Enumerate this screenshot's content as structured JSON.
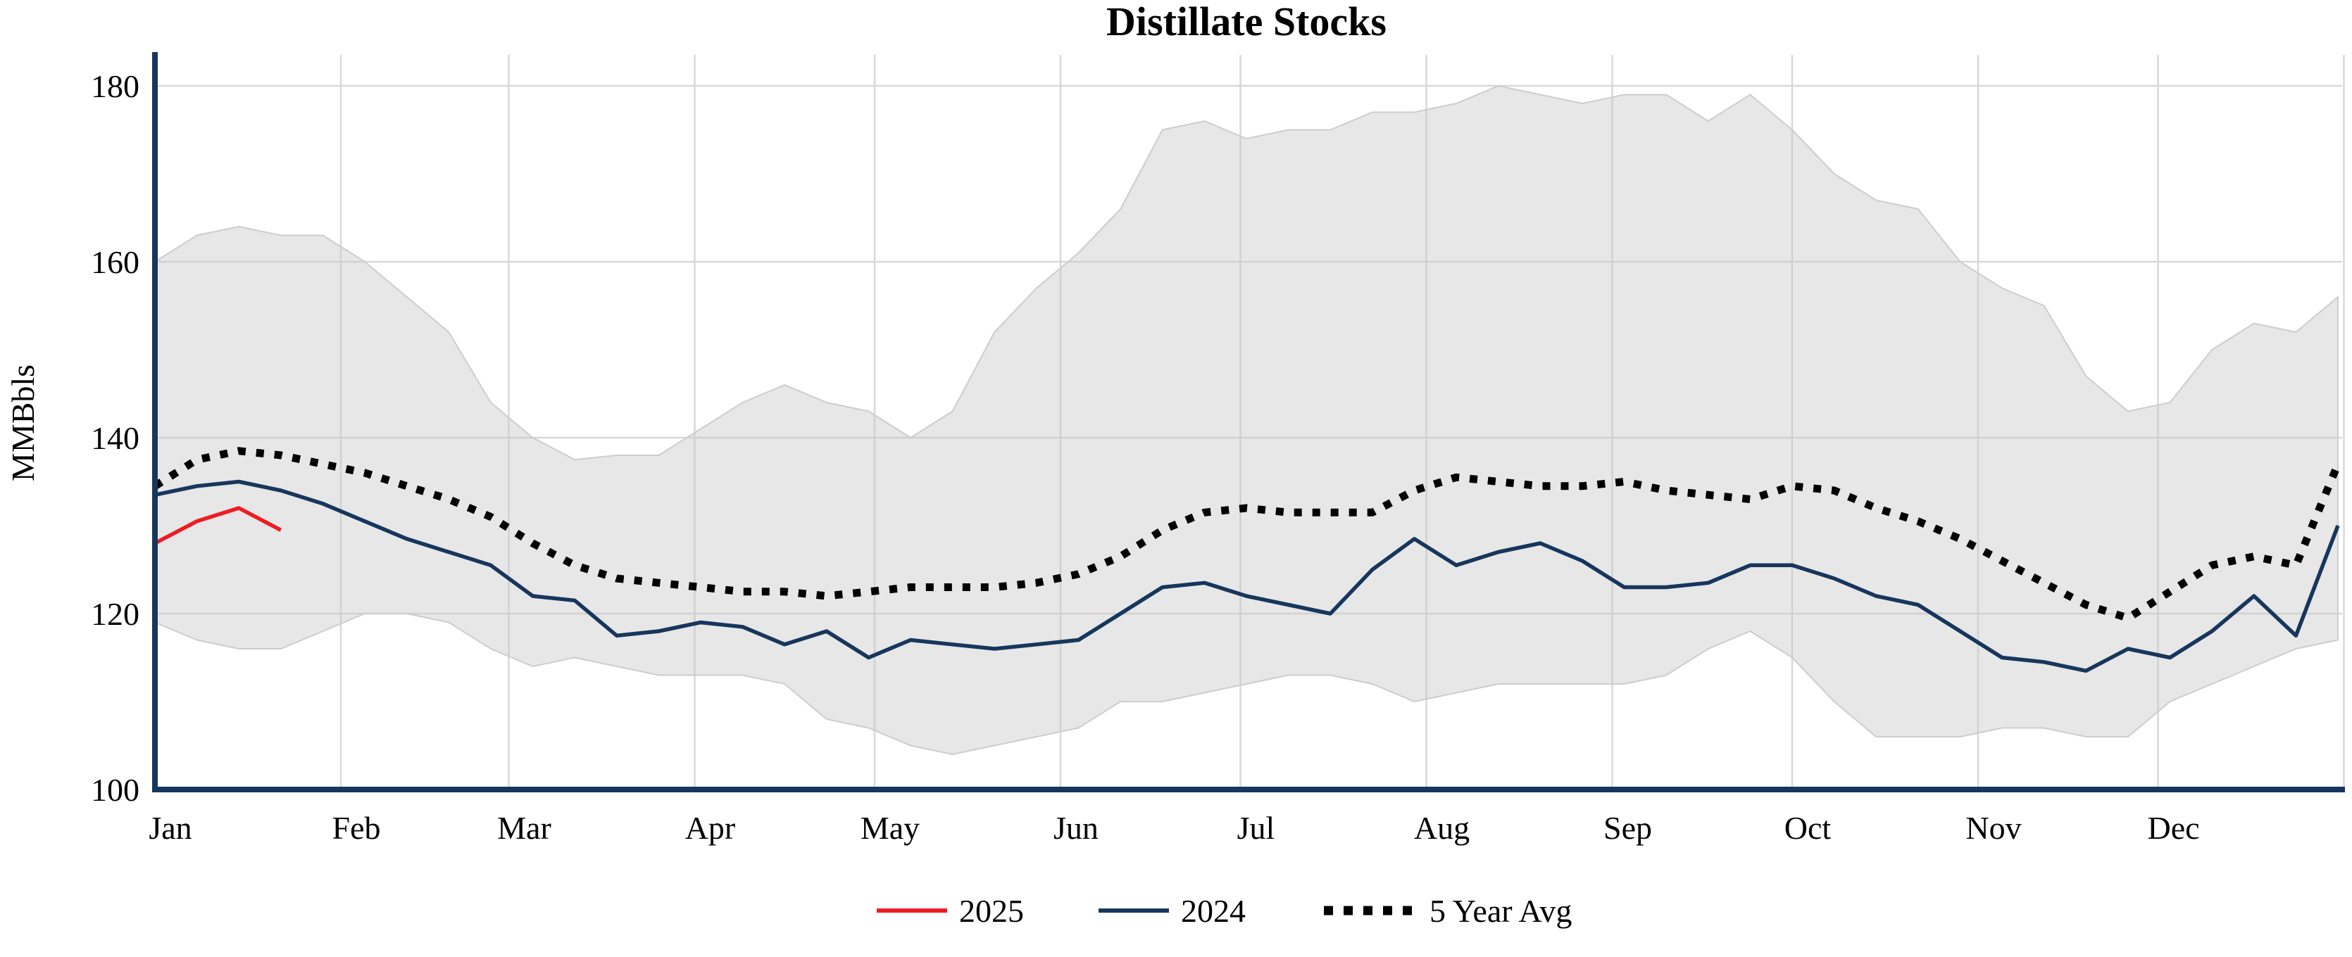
{
  "chart_data": {
    "type": "line",
    "title": "Distillate Stocks",
    "ylabel": "MMBbls",
    "xlabel": "",
    "ylim": [
      100,
      182
    ],
    "yticks": [
      100,
      120,
      140,
      160,
      180
    ],
    "months": [
      "Jan",
      "Feb",
      "Mar",
      "Apr",
      "May",
      "Jun",
      "Jul",
      "Aug",
      "Sep",
      "Oct",
      "Nov",
      "Dec"
    ],
    "month_start_day": [
      0,
      31,
      59,
      90,
      120,
      151,
      181,
      212,
      243,
      273,
      304,
      334
    ],
    "weeks_per_year": 52,
    "grid": true,
    "legend_position": "bottom-center",
    "colors": {
      "band_fill": "#c9c9c9",
      "band_edge": "#cdcdcd",
      "avg_line": "#000000",
      "line_2024": "#17365d",
      "line_2025": "#ed1c24",
      "axis_spine": "#17365d",
      "gridline": "#d8d8d8",
      "background": "#ffffff"
    },
    "legend": [
      {
        "label": "2025",
        "color": "#ed1c24",
        "style": "solid"
      },
      {
        "label": "2024",
        "color": "#17365d",
        "style": "solid"
      },
      {
        "label": "5 Year Avg",
        "color": "#000000",
        "style": "dotted"
      }
    ],
    "series": [
      {
        "name": "5yr-range-upper",
        "role": "band-upper",
        "start_week": 0,
        "values": [
          160,
          163,
          164,
          163,
          163,
          160,
          156,
          152,
          144,
          140,
          137.5,
          138,
          138,
          141,
          144,
          146,
          144,
          143,
          140,
          143,
          152,
          157,
          161,
          166,
          175,
          176,
          174,
          175,
          175,
          177,
          177,
          178,
          180,
          179,
          178,
          179,
          179,
          176,
          179,
          175,
          170,
          167,
          166,
          160,
          157,
          155,
          147,
          143,
          144,
          150,
          153,
          152,
          156
        ]
      },
      {
        "name": "5yr-range-lower",
        "role": "band-lower",
        "start_week": 0,
        "values": [
          119,
          117,
          116,
          116,
          118,
          120,
          120,
          119,
          116,
          114,
          115,
          114,
          113,
          113,
          113,
          112,
          108,
          107,
          105,
          104,
          105,
          106,
          107,
          110,
          110,
          111,
          112,
          113,
          113,
          112,
          110,
          111,
          112,
          112,
          112,
          112,
          113,
          116,
          118,
          115,
          110,
          106,
          106,
          106,
          107,
          107,
          106,
          106,
          110,
          112,
          114,
          116,
          117
        ]
      },
      {
        "name": "5 Year Avg",
        "role": "dotted-line",
        "start_week": 0,
        "values": [
          134.5,
          137.5,
          138.5,
          138,
          137,
          136,
          134.5,
          133,
          131,
          128,
          125.5,
          124,
          123.5,
          123,
          122.5,
          122.5,
          122,
          122.5,
          123,
          123,
          123,
          123.5,
          124.5,
          126.5,
          129.5,
          131.5,
          132,
          131.5,
          131.5,
          131.5,
          134,
          135.5,
          135,
          134.5,
          134.5,
          135,
          134,
          133.5,
          133,
          134.5,
          134,
          132,
          130.5,
          128.5,
          126,
          123.5,
          121,
          119.5,
          122.5,
          125.5,
          126.5,
          125.5,
          137
        ]
      },
      {
        "name": "2024",
        "role": "line",
        "start_week": 0,
        "values": [
          133.5,
          134.5,
          135,
          134,
          132.5,
          130.5,
          128.5,
          127,
          125.5,
          122,
          121.5,
          117.5,
          118,
          119,
          118.5,
          116.5,
          118,
          115,
          117,
          116.5,
          116,
          116.5,
          117,
          120,
          123,
          123.5,
          122,
          121,
          120,
          125,
          128.5,
          125.5,
          127,
          128,
          126,
          123,
          123,
          123.5,
          125.5,
          125.5,
          124,
          122,
          121,
          118,
          115,
          114.5,
          113.5,
          116,
          115,
          118,
          122,
          117.5,
          130
        ]
      },
      {
        "name": "2025",
        "role": "line",
        "start_week": 0,
        "values": [
          128,
          130.5,
          132,
          129.5
        ]
      }
    ]
  }
}
